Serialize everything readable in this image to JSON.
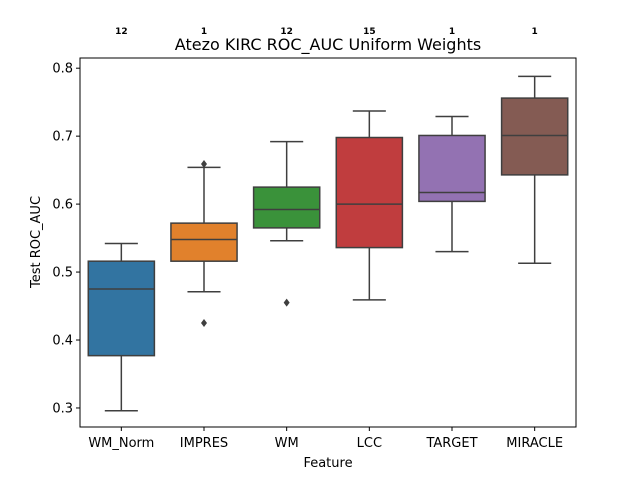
{
  "chart_data": {
    "type": "box",
    "title": "Atezo KIRC ROC_AUC Uniform Weights",
    "xlabel": "Feature",
    "ylabel": "Test ROC_AUC",
    "ylim": [
      0.272,
      0.815
    ],
    "yticks": [
      "0.3",
      "0.4",
      "0.5",
      "0.6",
      "0.7",
      "0.8"
    ],
    "grid": false,
    "categories": [
      "WM_Norm",
      "IMPRES",
      "WM",
      "LCC",
      "TARGET",
      "MIRACLE"
    ],
    "counts": [
      "12",
      "1",
      "12",
      "15",
      "1",
      "1"
    ],
    "colors": [
      "#3274a1",
      "#e1812c",
      "#3a923a",
      "#c03d3e",
      "#9372b2",
      "#845b53"
    ],
    "boxes": [
      {
        "whisker_low": 0.296,
        "q1": 0.377,
        "median": 0.475,
        "q3": 0.516,
        "whisker_high": 0.542,
        "outliers": []
      },
      {
        "whisker_low": 0.471,
        "q1": 0.516,
        "median": 0.548,
        "q3": 0.572,
        "whisker_high": 0.654,
        "outliers": [
          0.425,
          0.659
        ]
      },
      {
        "whisker_low": 0.546,
        "q1": 0.565,
        "median": 0.592,
        "q3": 0.625,
        "whisker_high": 0.692,
        "outliers": [
          0.455
        ]
      },
      {
        "whisker_low": 0.459,
        "q1": 0.536,
        "median": 0.6,
        "q3": 0.698,
        "whisker_high": 0.737,
        "outliers": []
      },
      {
        "whisker_low": 0.53,
        "q1": 0.604,
        "median": 0.617,
        "q3": 0.701,
        "whisker_high": 0.729,
        "outliers": []
      },
      {
        "whisker_low": 0.513,
        "q1": 0.643,
        "median": 0.701,
        "q3": 0.756,
        "whisker_high": 0.788,
        "outliers": []
      }
    ]
  }
}
